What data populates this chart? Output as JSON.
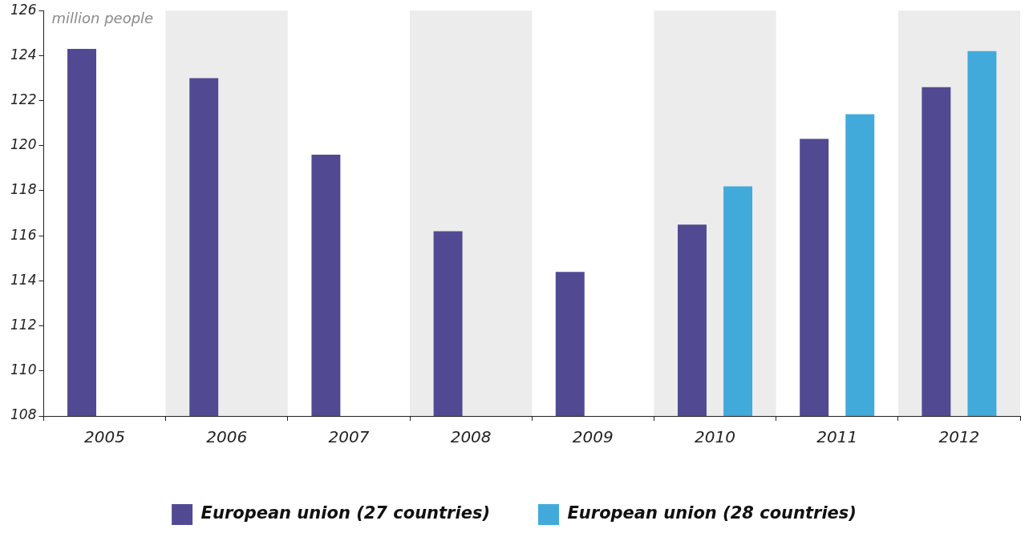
{
  "chart_data": {
    "type": "bar",
    "ylabel": "million people",
    "categories": [
      "2005",
      "2006",
      "2007",
      "2008",
      "2009",
      "2010",
      "2011",
      "2012"
    ],
    "series": [
      {
        "name": "European union (27 countries)",
        "color": "#514a93",
        "values": [
          124.3,
          123.0,
          119.6,
          116.2,
          114.4,
          116.5,
          120.3,
          122.6
        ]
      },
      {
        "name": "European union (28 countries)",
        "color": "#41aadb",
        "values": [
          null,
          null,
          null,
          null,
          null,
          118.2,
          121.4,
          124.2
        ]
      }
    ],
    "ylim": [
      108,
      126
    ],
    "yticks": [
      108,
      110,
      112,
      114,
      116,
      118,
      120,
      122,
      124,
      126
    ],
    "bands": [
      {
        "axis": "x",
        "from": "2006",
        "to": "2006",
        "color": "#ececec"
      },
      {
        "axis": "x",
        "from": "2008",
        "to": "2008",
        "color": "#ececec"
      },
      {
        "axis": "x",
        "from": "2010",
        "to": "2010",
        "color": "#ececec"
      },
      {
        "axis": "x",
        "from": "2012",
        "to": "2012",
        "color": "#ececec"
      }
    ],
    "grid": false,
    "legend": "bottom"
  }
}
